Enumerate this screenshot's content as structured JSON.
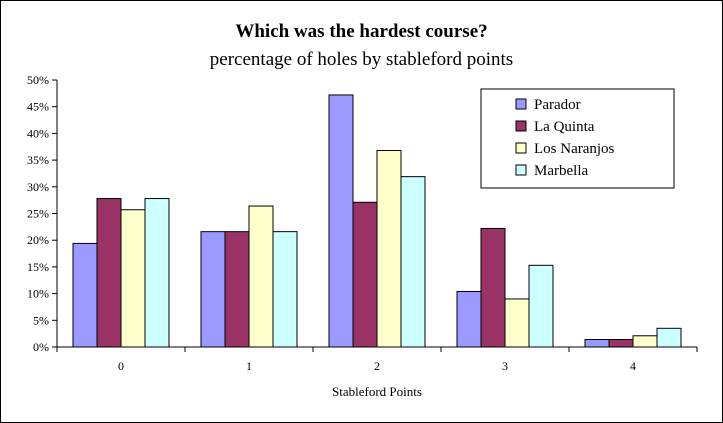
{
  "chart_data": {
    "type": "bar",
    "title": "Which was the hardest course?",
    "subtitle": "percentage of holes by stableford points",
    "xlabel": "Stableford Points",
    "ylabel": "",
    "categories": [
      "0",
      "1",
      "2",
      "3",
      "4"
    ],
    "ylim": [
      0,
      50
    ],
    "yticks": [
      0,
      5,
      10,
      15,
      20,
      25,
      30,
      35,
      40,
      45,
      50
    ],
    "ytick_suffix": "%",
    "grid": false,
    "legend_position": "top-right",
    "series": [
      {
        "name": "Parador",
        "color": "#9999ff",
        "values": [
          19.4,
          21.6,
          47.2,
          10.4,
          1.4
        ]
      },
      {
        "name": "La Quinta",
        "color": "#993366",
        "values": [
          27.8,
          21.6,
          27.1,
          22.2,
          1.4
        ]
      },
      {
        "name": "Los Naranjos",
        "color": "#ffffcc",
        "values": [
          25.7,
          26.4,
          36.8,
          9.0,
          2.1
        ]
      },
      {
        "name": "Marbella",
        "color": "#ccffff",
        "values": [
          27.8,
          21.6,
          31.9,
          15.3,
          3.5
        ]
      }
    ]
  }
}
